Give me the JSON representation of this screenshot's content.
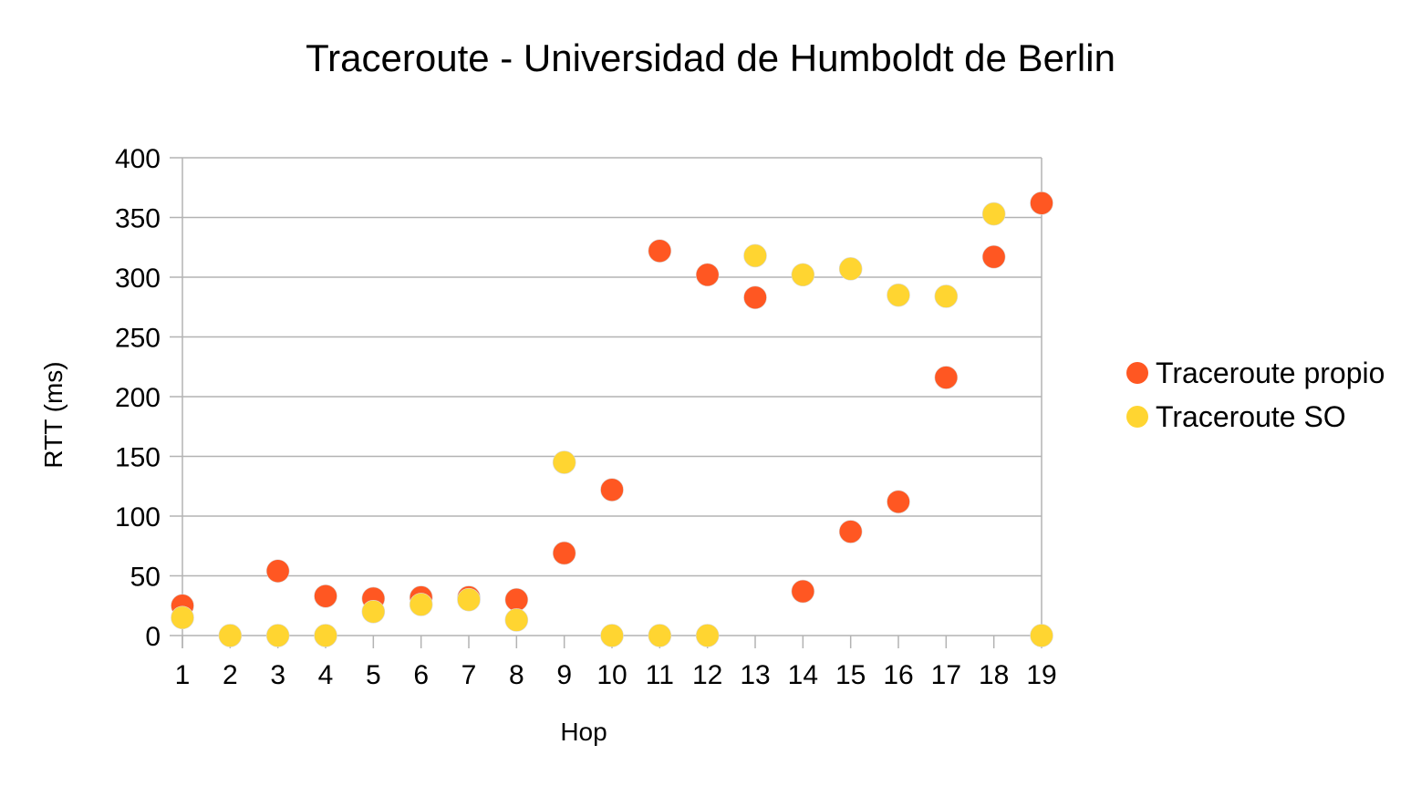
{
  "chart_data": {
    "type": "scatter",
    "title": "Traceroute - Universidad de Humboldt de Berlin",
    "xlabel": "Hop",
    "ylabel": "RTT (ms)",
    "xlim": [
      1,
      19
    ],
    "ylim": [
      0,
      400
    ],
    "x_ticks": [
      "1",
      "2",
      "3",
      "4",
      "5",
      "6",
      "7",
      "8",
      "9",
      "10",
      "11",
      "12",
      "13",
      "14",
      "15",
      "16",
      "17",
      "18",
      "19"
    ],
    "y_ticks": [
      "0",
      "50",
      "100",
      "150",
      "200",
      "250",
      "300",
      "350",
      "400"
    ],
    "grid": "horizontal",
    "legend_position": "right",
    "series": [
      {
        "name": "Traceroute propio",
        "color": "#ff5722",
        "points": [
          [
            1,
            25
          ],
          [
            3,
            54
          ],
          [
            4,
            33
          ],
          [
            5,
            31
          ],
          [
            6,
            32
          ],
          [
            7,
            32
          ],
          [
            8,
            30
          ],
          [
            9,
            69
          ],
          [
            10,
            122
          ],
          [
            11,
            322
          ],
          [
            12,
            302
          ],
          [
            13,
            283
          ],
          [
            14,
            37
          ],
          [
            15,
            87
          ],
          [
            16,
            112
          ],
          [
            17,
            216
          ],
          [
            18,
            317
          ],
          [
            19,
            362
          ]
        ]
      },
      {
        "name": "Traceroute SO",
        "color": "#ffd531",
        "points": [
          [
            1,
            15
          ],
          [
            2,
            0
          ],
          [
            3,
            0
          ],
          [
            4,
            0
          ],
          [
            5,
            20
          ],
          [
            6,
            26
          ],
          [
            7,
            30
          ],
          [
            8,
            13
          ],
          [
            9,
            145
          ],
          [
            10,
            0
          ],
          [
            11,
            0
          ],
          [
            12,
            0
          ],
          [
            13,
            318
          ],
          [
            14,
            302
          ],
          [
            15,
            307
          ],
          [
            16,
            285
          ],
          [
            17,
            284
          ],
          [
            18,
            353
          ],
          [
            19,
            0
          ]
        ]
      }
    ]
  }
}
